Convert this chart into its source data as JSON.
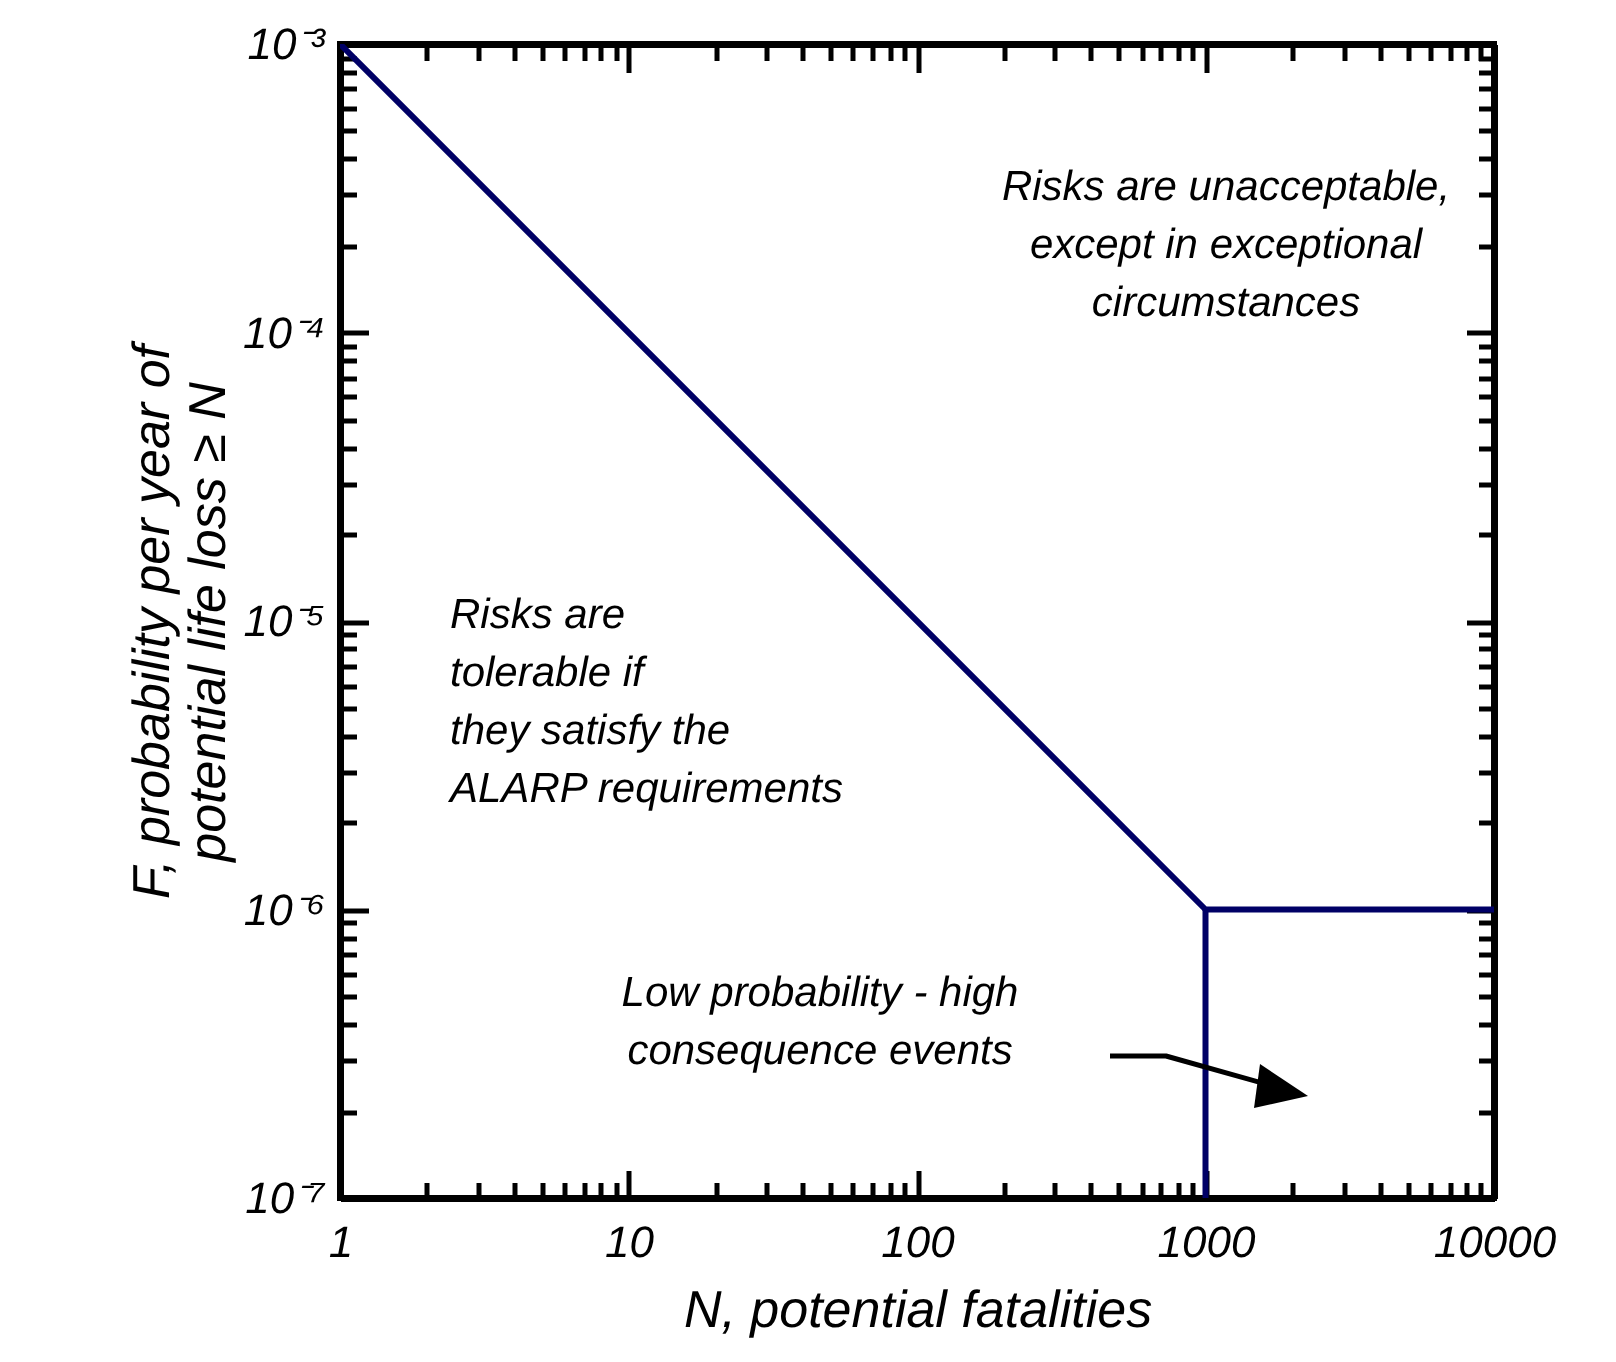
{
  "chart_data": {
    "type": "line",
    "xlabel": "N, potential fatalities",
    "ylabel": "F, probability per year of potential life loss ≥ N",
    "log": "xy",
    "grid": false,
    "legend": false,
    "line_style": "solid",
    "marker": "none",
    "xlim": [
      1,
      10000
    ],
    "ylim": [
      1e-07,
      0.001
    ],
    "xticks": [
      1,
      {
        "value": 2,
        "label": null
      },
      {
        "value": 3,
        "label": null
      },
      {
        "value": 4,
        "label": null
      },
      {
        "value": 5,
        "label": null
      },
      {
        "value": 6,
        "label": null
      },
      {
        "value": 7,
        "label": null
      },
      {
        "value": 8,
        "label": null
      },
      {
        "value": 9,
        "label": null
      },
      10,
      {
        "value": 20,
        "label": null
      },
      {
        "value": 30,
        "label": null
      },
      {
        "value": 40,
        "label": null
      },
      {
        "value": 50,
        "label": null
      },
      {
        "value": 60,
        "label": null
      },
      {
        "value": 70,
        "label": null
      },
      {
        "value": 80,
        "label": null
      },
      {
        "value": 90,
        "label": null
      },
      100,
      {
        "value": 200,
        "label": null
      },
      {
        "value": 300,
        "label": null
      },
      {
        "value": 400,
        "label": null
      },
      {
        "value": 500,
        "label": null
      },
      {
        "value": 600,
        "label": null
      },
      {
        "value": 700,
        "label": null
      },
      {
        "value": 800,
        "label": null
      },
      {
        "value": 900,
        "label": null
      },
      1000,
      {
        "value": 2000,
        "label": null
      },
      {
        "value": 3000,
        "label": null
      },
      {
        "value": 4000,
        "label": null
      },
      {
        "value": 5000,
        "label": null
      },
      {
        "value": 6000,
        "label": null
      },
      {
        "value": 7000,
        "label": null
      },
      {
        "value": 8000,
        "label": null
      },
      {
        "value": 9000,
        "label": null
      },
      10000
    ],
    "yticks": [
      {
        "value": 1e-07,
        "label": "10⁻⁷"
      },
      {
        "value": 2e-07,
        "label": null
      },
      {
        "value": 3e-07,
        "label": null
      },
      {
        "value": 4e-07,
        "label": null
      },
      {
        "value": 5e-07,
        "label": null
      },
      {
        "value": 6e-07,
        "label": null
      },
      {
        "value": 7e-07,
        "label": null
      },
      {
        "value": 8e-07,
        "label": null
      },
      {
        "value": 9e-07,
        "label": null
      },
      {
        "value": 1e-06,
        "label": "10⁻⁶"
      },
      {
        "value": 2e-06,
        "label": null
      },
      {
        "value": 3e-06,
        "label": null
      },
      {
        "value": 4e-06,
        "label": null
      },
      {
        "value": 5e-06,
        "label": null
      },
      {
        "value": 6e-06,
        "label": null
      },
      {
        "value": 7e-06,
        "label": null
      },
      {
        "value": 8e-06,
        "label": null
      },
      {
        "value": 9e-06,
        "label": null
      },
      {
        "value": 1e-05,
        "label": "10⁻⁵"
      },
      {
        "value": 2e-05,
        "label": null
      },
      {
        "value": 3e-05,
        "label": null
      },
      {
        "value": 4e-05,
        "label": null
      },
      {
        "value": 5e-05,
        "label": null
      },
      {
        "value": 6e-05,
        "label": null
      },
      {
        "value": 7e-05,
        "label": null
      },
      {
        "value": 8e-05,
        "label": null
      },
      {
        "value": 9e-05,
        "label": null
      },
      {
        "value": 0.0001,
        "label": "10⁻⁴"
      },
      {
        "value": 0.0002,
        "label": null
      },
      {
        "value": 0.0003,
        "label": null
      },
      {
        "value": 0.0004,
        "label": null
      },
      {
        "value": 0.0005,
        "label": null
      },
      {
        "value": 0.0006,
        "label": null
      },
      {
        "value": 0.0007,
        "label": null
      },
      {
        "value": 0.0008,
        "label": null
      },
      {
        "value": 0.0009,
        "label": null
      },
      {
        "value": 0.001,
        "label": "10⁻³"
      }
    ],
    "series": [
      {
        "color": "#000066",
        "x": [
          1,
          1000,
          10000
        ],
        "values": [
          0.001,
          1e-06,
          1e-06
        ]
      },
      {
        "color": "#000066",
        "x": [
          1000,
          1000
        ],
        "values": [
          1e-07,
          1e-06
        ]
      }
    ],
    "annotations": [
      "Risks are unacceptable,\nexcept in exceptional\ncircumstances",
      "Risks are\ntolerable if\nthey satisfy the\nALARP requirements",
      "Low probability - high\nconsequence events"
    ]
  }
}
